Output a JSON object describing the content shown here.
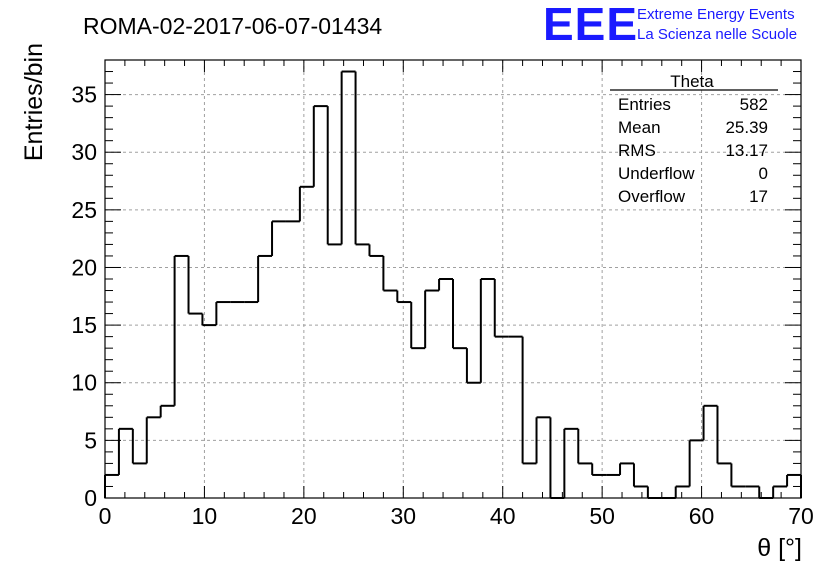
{
  "header": {
    "run_title": "ROMA-02-2017-06-07-01434",
    "logo_text": "EEE",
    "logo_line1": "Extreme Energy Events",
    "logo_line2": "La Scienza nelle Scuole"
  },
  "stats": {
    "title": "Theta",
    "rows": [
      {
        "label": "Entries",
        "value": "582"
      },
      {
        "label": "Mean",
        "value": "25.39"
      },
      {
        "label": "RMS",
        "value": "13.17"
      },
      {
        "label": "Underflow",
        "value": "0"
      },
      {
        "label": "Overflow",
        "value": "17"
      }
    ]
  },
  "colors": {
    "logo": "#1a1aff",
    "line": "#000000",
    "grid": "#999999"
  },
  "chart_data": {
    "type": "histogram",
    "xlabel": "θ [°]",
    "ylabel": "Entries/bin",
    "xlim": [
      0,
      70
    ],
    "ylim": [
      0,
      38
    ],
    "grid": true,
    "x_ticks": [
      "0",
      "10",
      "20",
      "30",
      "40",
      "50",
      "60",
      "70"
    ],
    "y_ticks": [
      "0",
      "5",
      "10",
      "15",
      "20",
      "25",
      "30",
      "35"
    ],
    "bin_width": 1.4,
    "values": [
      2,
      6,
      3,
      7,
      8,
      21,
      16,
      15,
      17,
      17,
      17,
      21,
      24,
      24,
      27,
      34,
      22,
      37,
      22,
      21,
      18,
      17,
      13,
      18,
      19,
      13,
      10,
      19,
      14,
      14,
      3,
      7,
      0,
      6,
      3,
      2,
      2,
      3,
      1,
      0,
      0,
      1,
      5,
      8,
      3,
      1,
      1,
      0,
      1,
      2
    ]
  }
}
